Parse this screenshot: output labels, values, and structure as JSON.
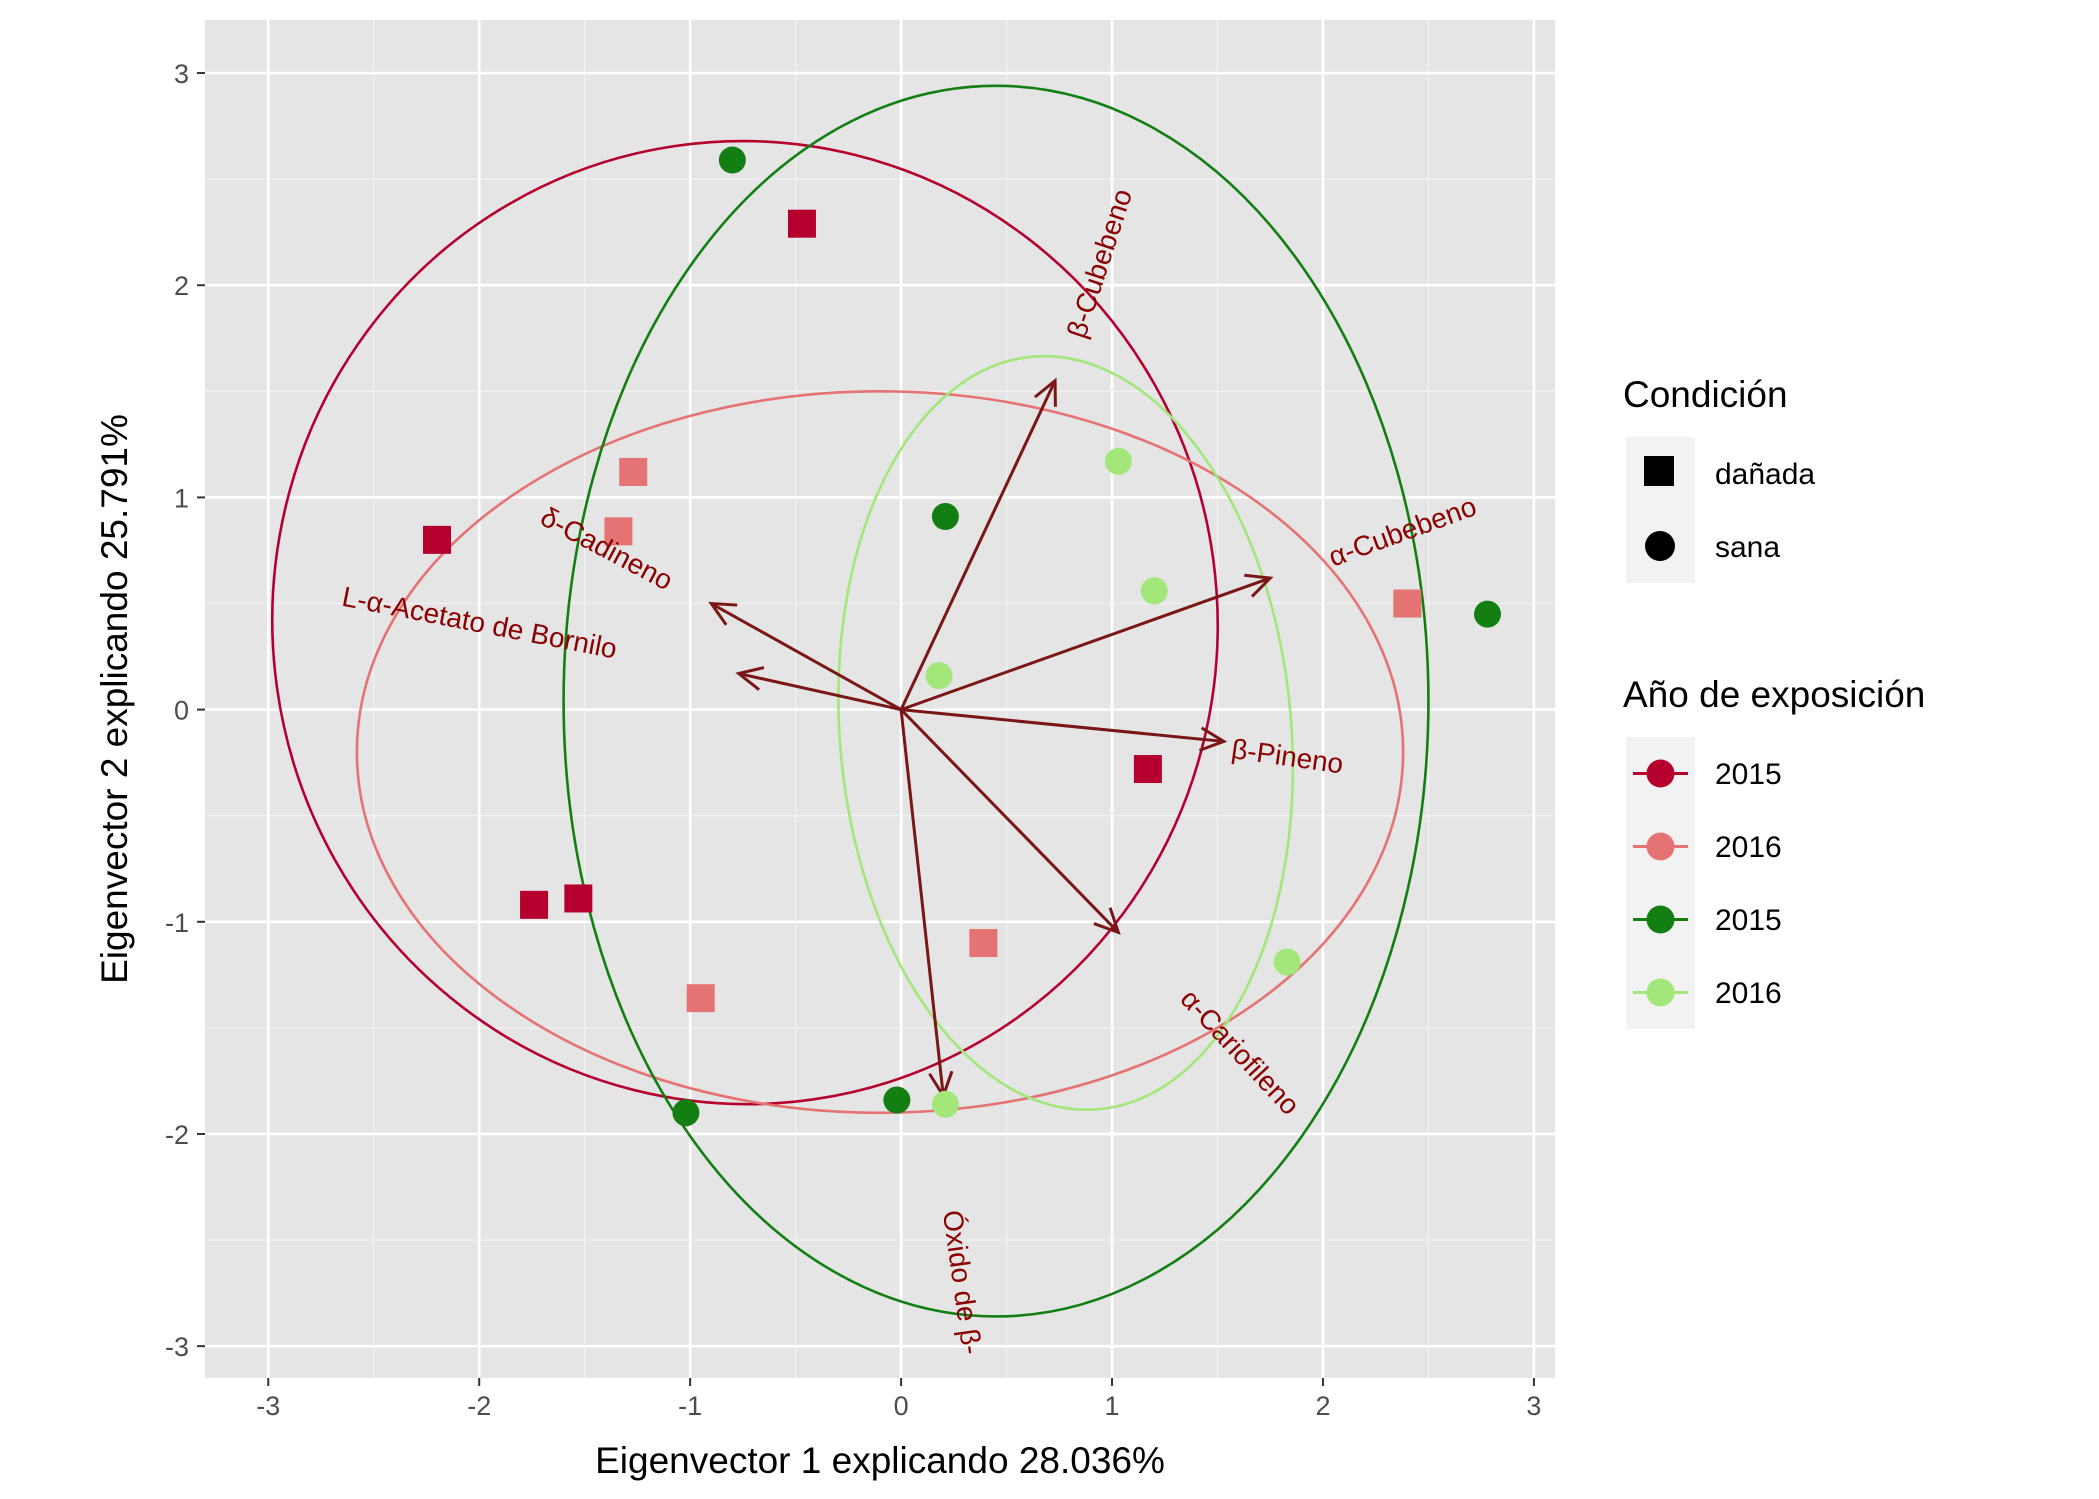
{
  "chart_data": {
    "type": "scatter",
    "subtype": "pca-biplot",
    "xlabel": "Eigenvector 1 explicando 28.036%",
    "ylabel": "Eigenvector 2 explicando 25.791%",
    "xlim": [
      -3.3,
      3.1
    ],
    "ylim": [
      -3.15,
      3.25
    ],
    "xticks": [
      -3,
      -2,
      -1,
      0,
      1,
      2,
      3
    ],
    "xtick_labels": [
      "-3",
      "-2",
      "-1",
      "0",
      "1",
      "2",
      "3"
    ],
    "yticks": [
      -3,
      -2,
      -1,
      0,
      1,
      2,
      3
    ],
    "ytick_labels": [
      "-3",
      "-2",
      "-1",
      "0",
      "1",
      "2",
      "3"
    ],
    "grid": true,
    "legend_placement": "right",
    "shape_legend": {
      "title": "Condición",
      "items": [
        {
          "label": "dañada",
          "shape": "square"
        },
        {
          "label": "sana",
          "shape": "circle"
        }
      ]
    },
    "color_legend": {
      "title": "Año de exposición",
      "items": [
        {
          "label": "2015",
          "color": "#b5002f"
        },
        {
          "label": "2016",
          "color": "#e57373"
        },
        {
          "label": "2015",
          "color": "#137f13"
        },
        {
          "label": "2016",
          "color": "#a3e67a"
        }
      ]
    },
    "series": [
      {
        "label": "dañada 2015",
        "color": "#b5002f",
        "shape": "square",
        "points": [
          [
            -0.47,
            2.29
          ],
          [
            -2.2,
            0.8
          ],
          [
            -1.74,
            -0.92
          ],
          [
            -1.53,
            -0.89
          ],
          [
            1.17,
            -0.28
          ]
        ],
        "ellipse": {
          "cx": -0.74,
          "cy": 0.41,
          "rx": 2.24,
          "ry": 2.27,
          "angle": -8
        }
      },
      {
        "label": "dañada 2016",
        "color": "#e57373",
        "shape": "square",
        "points": [
          [
            -1.27,
            1.12
          ],
          [
            -1.34,
            0.84
          ],
          [
            -0.95,
            -1.36
          ],
          [
            0.39,
            -1.1
          ],
          [
            2.4,
            0.5
          ]
        ],
        "ellipse": {
          "cx": -0.1,
          "cy": -0.2,
          "rx": 2.48,
          "ry": 1.7,
          "angle": 0
        }
      },
      {
        "label": "sana 2015",
        "color": "#137f13",
        "shape": "circle",
        "points": [
          [
            -0.8,
            2.59
          ],
          [
            0.21,
            0.91
          ],
          [
            2.78,
            0.45
          ],
          [
            -1.02,
            -1.9
          ],
          [
            -0.02,
            -1.84
          ]
        ],
        "ellipse": {
          "cx": 0.45,
          "cy": 0.04,
          "rx": 2.05,
          "ry": 2.9,
          "angle": 0
        }
      },
      {
        "label": "sana 2016",
        "color": "#a3e67a",
        "shape": "circle",
        "points": [
          [
            1.03,
            1.17
          ],
          [
            1.2,
            0.56
          ],
          [
            0.18,
            0.16
          ],
          [
            1.83,
            -1.19
          ],
          [
            0.21,
            -1.86
          ]
        ],
        "ellipse": {
          "cx": 0.78,
          "cy": -0.11,
          "rx": 1.07,
          "ry": 1.78,
          "angle": -5
        }
      }
    ],
    "arrow_color": "#7a1616",
    "loadings": [
      {
        "label": "β-Cubebeno",
        "x": 0.73,
        "y": 1.55,
        "lx": 0.95,
        "ly": 2.1,
        "rot": -72
      },
      {
        "label": "α-Cubebeno",
        "x": 1.75,
        "y": 0.62,
        "lx": 2.38,
        "ly": 0.83,
        "rot": -20
      },
      {
        "label": "β-Pineno",
        "x": 1.53,
        "y": -0.15,
        "lx": 1.83,
        "ly": -0.23,
        "rot": 8
      },
      {
        "label": "α-Cariofileno",
        "x": 1.03,
        "y": -1.05,
        "lx": 1.6,
        "ly": -1.62,
        "rot": 47
      },
      {
        "label": "Óxido de β-",
        "x": 0.2,
        "y": -1.82,
        "lx": 0.28,
        "ly": -2.7,
        "rot": 82
      },
      {
        "label": "δ-Cadineno",
        "x": -0.9,
        "y": 0.5,
        "lx": -1.4,
        "ly": 0.75,
        "rot": 28
      },
      {
        "label": "L-α-Acetato de Bornilo",
        "x": -0.77,
        "y": 0.17,
        "lx": -2.0,
        "ly": 0.4,
        "rot": 11
      }
    ]
  }
}
